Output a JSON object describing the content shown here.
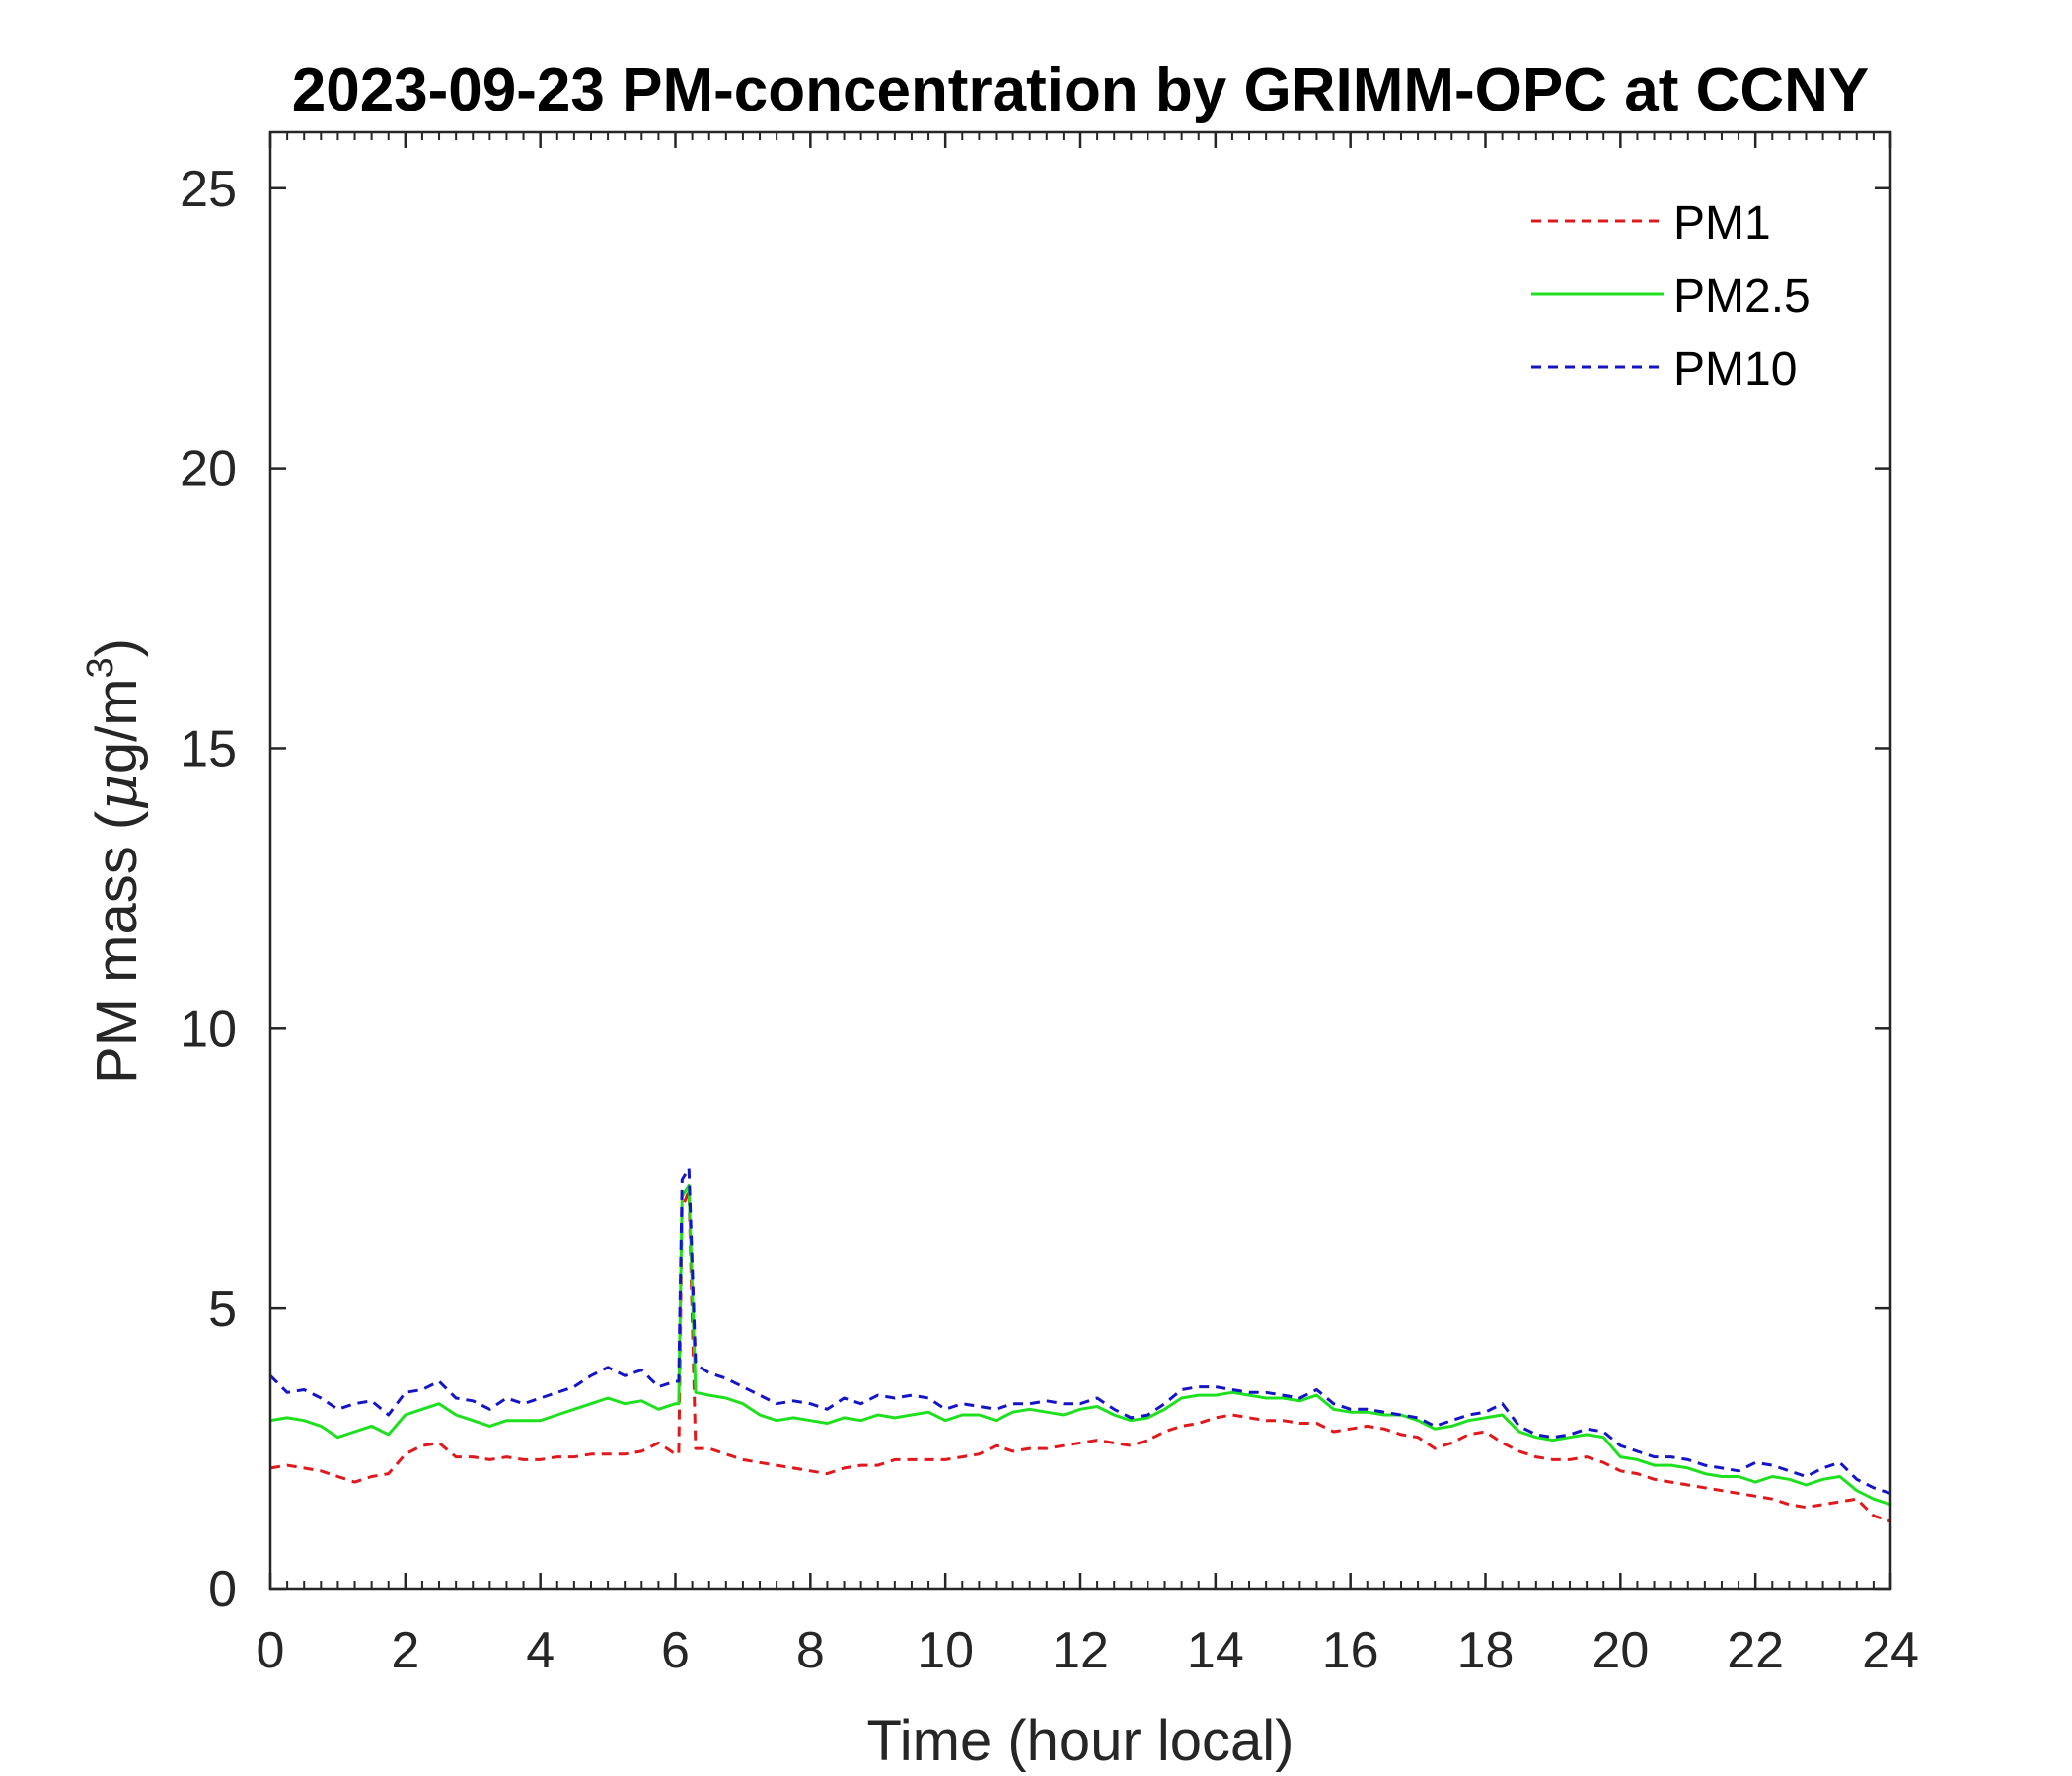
{
  "chart_data": {
    "type": "line",
    "title": "2023-09-23 PM-concentration by GRIMM-OPC at CCNY",
    "xlabel": "Time (hour local)",
    "ylabel": "PM mass (μg/m3)",
    "ylabel_parts": {
      "main": "PM mass (",
      "mu": "μ",
      "unit": "g/m",
      "sup": "3",
      "close": ")"
    },
    "xlim": [
      0,
      24
    ],
    "ylim": [
      0,
      26
    ],
    "xticks": [
      0,
      2,
      4,
      6,
      8,
      10,
      12,
      14,
      16,
      18,
      20,
      22,
      24
    ],
    "yticks": [
      0,
      5,
      10,
      15,
      20,
      25
    ],
    "xtick_labels": [
      "0",
      "2",
      "4",
      "6",
      "8",
      "10",
      "12",
      "14",
      "16",
      "18",
      "20",
      "22",
      "24"
    ],
    "ytick_labels": [
      "0",
      "5",
      "10",
      "15",
      "20",
      "25"
    ],
    "grid": false,
    "legend_position": "top-right",
    "series": [
      {
        "name": "PM1",
        "color": "#e0191c",
        "dash": "dashed",
        "x": [
          0.0,
          0.25,
          0.5,
          0.75,
          1.0,
          1.25,
          1.5,
          1.75,
          2.0,
          2.25,
          2.5,
          2.75,
          3.0,
          3.25,
          3.5,
          3.75,
          4.0,
          4.25,
          4.5,
          4.75,
          5.0,
          5.25,
          5.5,
          5.75,
          6.0,
          6.05,
          6.1,
          6.2,
          6.3,
          6.5,
          6.75,
          7.0,
          7.25,
          7.5,
          7.75,
          8.0,
          8.25,
          8.5,
          8.75,
          9.0,
          9.25,
          9.5,
          9.75,
          10.0,
          10.25,
          10.5,
          10.75,
          11.0,
          11.25,
          11.5,
          11.75,
          12.0,
          12.25,
          12.5,
          12.75,
          13.0,
          13.25,
          13.5,
          13.75,
          14.0,
          14.25,
          14.5,
          14.75,
          15.0,
          15.25,
          15.5,
          15.75,
          16.0,
          16.25,
          16.5,
          16.75,
          17.0,
          17.25,
          17.5,
          17.75,
          18.0,
          18.25,
          18.5,
          18.75,
          19.0,
          19.25,
          19.5,
          19.75,
          20.0,
          20.25,
          20.5,
          20.75,
          21.0,
          21.25,
          21.5,
          21.75,
          22.0,
          22.25,
          22.5,
          22.75,
          23.0,
          23.25,
          23.5,
          23.75,
          24.0
        ],
        "y": [
          2.15,
          2.2,
          2.15,
          2.1,
          2.0,
          1.9,
          2.0,
          2.05,
          2.4,
          2.55,
          2.6,
          2.35,
          2.35,
          2.3,
          2.35,
          2.3,
          2.3,
          2.35,
          2.35,
          2.4,
          2.4,
          2.4,
          2.45,
          2.6,
          2.4,
          2.4,
          6.8,
          7.1,
          2.5,
          2.5,
          2.4,
          2.3,
          2.25,
          2.2,
          2.15,
          2.1,
          2.05,
          2.15,
          2.2,
          2.2,
          2.3,
          2.3,
          2.3,
          2.3,
          2.35,
          2.4,
          2.55,
          2.45,
          2.5,
          2.5,
          2.55,
          2.6,
          2.65,
          2.6,
          2.55,
          2.65,
          2.8,
          2.9,
          2.95,
          3.05,
          3.1,
          3.05,
          3.0,
          3.0,
          2.95,
          2.95,
          2.8,
          2.85,
          2.9,
          2.85,
          2.75,
          2.7,
          2.5,
          2.6,
          2.75,
          2.8,
          2.6,
          2.45,
          2.35,
          2.3,
          2.3,
          2.35,
          2.25,
          2.1,
          2.05,
          1.95,
          1.9,
          1.85,
          1.8,
          1.75,
          1.7,
          1.65,
          1.6,
          1.5,
          1.45,
          1.5,
          1.55,
          1.6,
          1.3,
          1.2
        ]
      },
      {
        "name": "PM2.5",
        "color": "#1ee01e",
        "dash": "solid",
        "x": [
          0.0,
          0.25,
          0.5,
          0.75,
          1.0,
          1.25,
          1.5,
          1.75,
          2.0,
          2.25,
          2.5,
          2.75,
          3.0,
          3.25,
          3.5,
          3.75,
          4.0,
          4.25,
          4.5,
          4.75,
          5.0,
          5.25,
          5.5,
          5.75,
          6.0,
          6.05,
          6.1,
          6.2,
          6.3,
          6.5,
          6.75,
          7.0,
          7.25,
          7.5,
          7.75,
          8.0,
          8.25,
          8.5,
          8.75,
          9.0,
          9.25,
          9.5,
          9.75,
          10.0,
          10.25,
          10.5,
          10.75,
          11.0,
          11.25,
          11.5,
          11.75,
          12.0,
          12.25,
          12.5,
          12.75,
          13.0,
          13.25,
          13.5,
          13.75,
          14.0,
          14.25,
          14.5,
          14.75,
          15.0,
          15.25,
          15.5,
          15.75,
          16.0,
          16.25,
          16.5,
          16.75,
          17.0,
          17.25,
          17.5,
          17.75,
          18.0,
          18.25,
          18.5,
          18.75,
          19.0,
          19.25,
          19.5,
          19.75,
          20.0,
          20.25,
          20.5,
          20.75,
          21.0,
          21.25,
          21.5,
          21.75,
          22.0,
          22.25,
          22.5,
          22.75,
          23.0,
          23.25,
          23.5,
          23.75,
          24.0
        ],
        "y": [
          3.0,
          3.05,
          3.0,
          2.9,
          2.7,
          2.8,
          2.9,
          2.75,
          3.1,
          3.2,
          3.3,
          3.1,
          3.0,
          2.9,
          3.0,
          3.0,
          3.0,
          3.1,
          3.2,
          3.3,
          3.4,
          3.3,
          3.35,
          3.2,
          3.3,
          3.3,
          7.0,
          7.2,
          3.5,
          3.45,
          3.4,
          3.3,
          3.1,
          3.0,
          3.05,
          3.0,
          2.95,
          3.05,
          3.0,
          3.1,
          3.05,
          3.1,
          3.15,
          3.0,
          3.1,
          3.1,
          3.0,
          3.15,
          3.2,
          3.15,
          3.1,
          3.2,
          3.25,
          3.1,
          3.0,
          3.05,
          3.2,
          3.4,
          3.45,
          3.45,
          3.5,
          3.45,
          3.4,
          3.4,
          3.35,
          3.45,
          3.2,
          3.15,
          3.15,
          3.1,
          3.1,
          3.0,
          2.85,
          2.9,
          3.0,
          3.05,
          3.1,
          2.8,
          2.7,
          2.65,
          2.7,
          2.75,
          2.7,
          2.35,
          2.3,
          2.2,
          2.2,
          2.15,
          2.05,
          2.0,
          2.0,
          1.9,
          2.0,
          1.95,
          1.85,
          1.95,
          2.0,
          1.75,
          1.6,
          1.5
        ]
      },
      {
        "name": "PM10",
        "color": "#1515c8",
        "dash": "dashed",
        "x": [
          0.0,
          0.25,
          0.5,
          0.75,
          1.0,
          1.25,
          1.5,
          1.75,
          2.0,
          2.25,
          2.5,
          2.75,
          3.0,
          3.25,
          3.5,
          3.75,
          4.0,
          4.25,
          4.5,
          4.75,
          5.0,
          5.25,
          5.5,
          5.75,
          6.0,
          6.05,
          6.1,
          6.2,
          6.3,
          6.5,
          6.75,
          7.0,
          7.25,
          7.5,
          7.75,
          8.0,
          8.25,
          8.5,
          8.75,
          9.0,
          9.25,
          9.5,
          9.75,
          10.0,
          10.25,
          10.5,
          10.75,
          11.0,
          11.25,
          11.5,
          11.75,
          12.0,
          12.25,
          12.5,
          12.75,
          13.0,
          13.25,
          13.5,
          13.75,
          14.0,
          14.25,
          14.5,
          14.75,
          15.0,
          15.25,
          15.5,
          15.75,
          16.0,
          16.25,
          16.5,
          16.75,
          17.0,
          17.25,
          17.5,
          17.75,
          18.0,
          18.25,
          18.5,
          18.75,
          19.0,
          19.25,
          19.5,
          19.75,
          20.0,
          20.25,
          20.5,
          20.75,
          21.0,
          21.25,
          21.5,
          21.75,
          22.0,
          22.25,
          22.5,
          22.75,
          23.0,
          23.25,
          23.5,
          23.75,
          24.0
        ],
        "y": [
          3.8,
          3.5,
          3.55,
          3.4,
          3.2,
          3.3,
          3.35,
          3.1,
          3.5,
          3.55,
          3.7,
          3.4,
          3.35,
          3.2,
          3.4,
          3.3,
          3.4,
          3.5,
          3.6,
          3.8,
          3.95,
          3.8,
          3.9,
          3.6,
          3.7,
          3.7,
          7.3,
          7.5,
          4.0,
          3.85,
          3.75,
          3.6,
          3.45,
          3.3,
          3.35,
          3.3,
          3.2,
          3.4,
          3.3,
          3.45,
          3.4,
          3.45,
          3.4,
          3.2,
          3.3,
          3.25,
          3.2,
          3.3,
          3.3,
          3.35,
          3.3,
          3.3,
          3.4,
          3.2,
          3.05,
          3.1,
          3.3,
          3.55,
          3.6,
          3.6,
          3.55,
          3.5,
          3.5,
          3.45,
          3.4,
          3.55,
          3.3,
          3.2,
          3.2,
          3.15,
          3.1,
          3.05,
          2.9,
          3.0,
          3.1,
          3.15,
          3.3,
          2.9,
          2.75,
          2.7,
          2.75,
          2.85,
          2.8,
          2.55,
          2.45,
          2.35,
          2.35,
          2.3,
          2.2,
          2.15,
          2.1,
          2.25,
          2.2,
          2.1,
          2.0,
          2.15,
          2.25,
          1.95,
          1.8,
          1.7
        ]
      }
    ]
  }
}
